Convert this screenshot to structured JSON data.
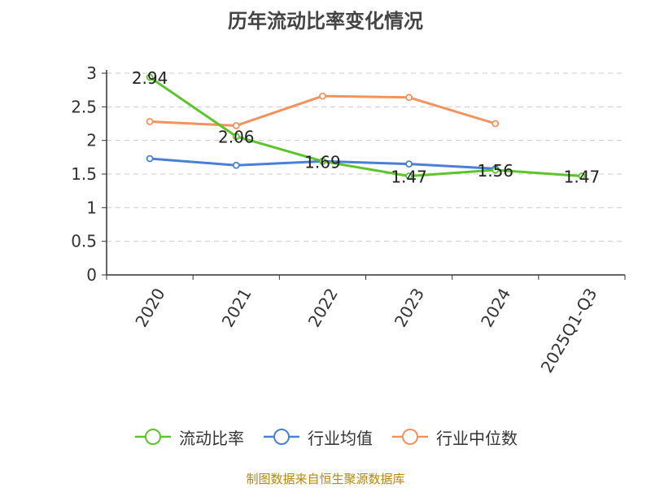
{
  "chart_data": {
    "type": "line",
    "title": "历年流动比率变化情况",
    "categories": [
      "2020",
      "2021",
      "2022",
      "2023",
      "2024",
      "2025Q1-Q3"
    ],
    "series": [
      {
        "name": "流动比率",
        "color": "#5dc42a",
        "values": [
          2.94,
          2.06,
          1.69,
          1.47,
          1.56,
          1.47
        ],
        "labels": [
          "2.94",
          "2.06",
          "1.69",
          "1.47",
          "1.56",
          "1.47"
        ],
        "show_labels": true
      },
      {
        "name": "行业均值",
        "color": "#4a7fd8",
        "values": [
          1.73,
          1.63,
          1.69,
          1.65,
          1.58,
          null
        ],
        "show_labels": false
      },
      {
        "name": "行业中位数",
        "color": "#f4925e",
        "values": [
          2.28,
          2.22,
          2.66,
          2.64,
          2.25,
          null
        ],
        "show_labels": false
      }
    ],
    "yticks": [
      "0",
      "0.5",
      "1",
      "1.5",
      "2",
      "2.5",
      "3"
    ],
    "ylim": [
      0,
      3
    ],
    "grid": true,
    "legend_position": "bottom",
    "source": "制图数据来自恒生聚源数据库"
  }
}
